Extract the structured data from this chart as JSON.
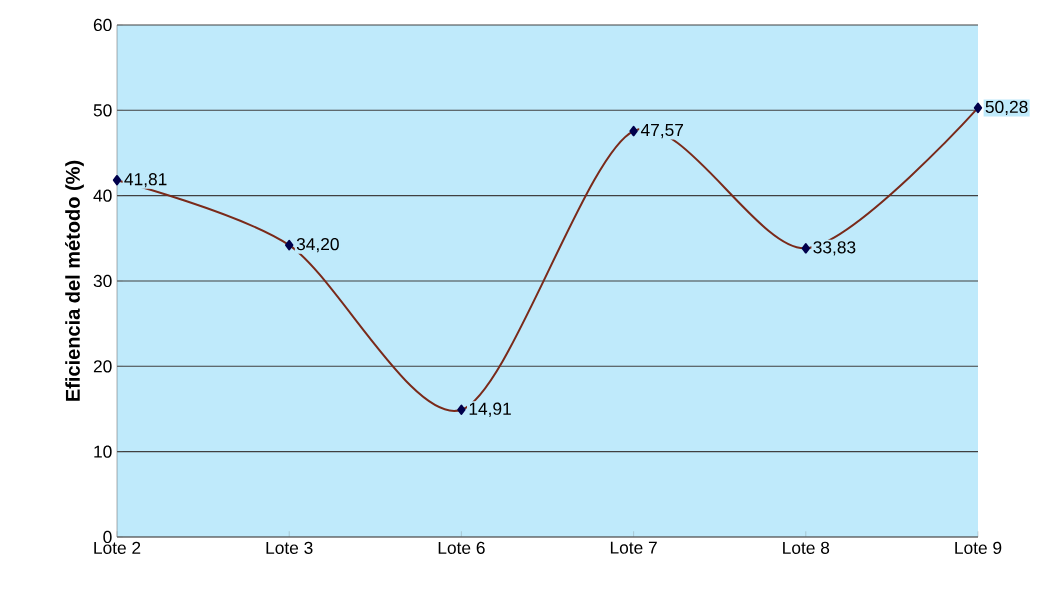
{
  "chart_data": {
    "type": "line",
    "ylabel": "Eficiencia del método (%)",
    "categories": [
      "Lote 2",
      "Lote 3",
      "Lote 6",
      "Lote 7",
      "Lote 8",
      "Lote 9"
    ],
    "values": [
      41.81,
      34.2,
      14.91,
      47.57,
      33.83,
      50.28
    ],
    "value_labels": [
      "41,81",
      "34,20",
      "14,91",
      "47,57",
      "33,83",
      "50,28"
    ],
    "color": "#7a2a1a",
    "marker": "diamond",
    "line_style": "solid",
    "grid": "y",
    "ylim": [
      0,
      60
    ],
    "yticks": [
      0,
      10,
      20,
      30,
      40,
      50,
      60
    ]
  }
}
